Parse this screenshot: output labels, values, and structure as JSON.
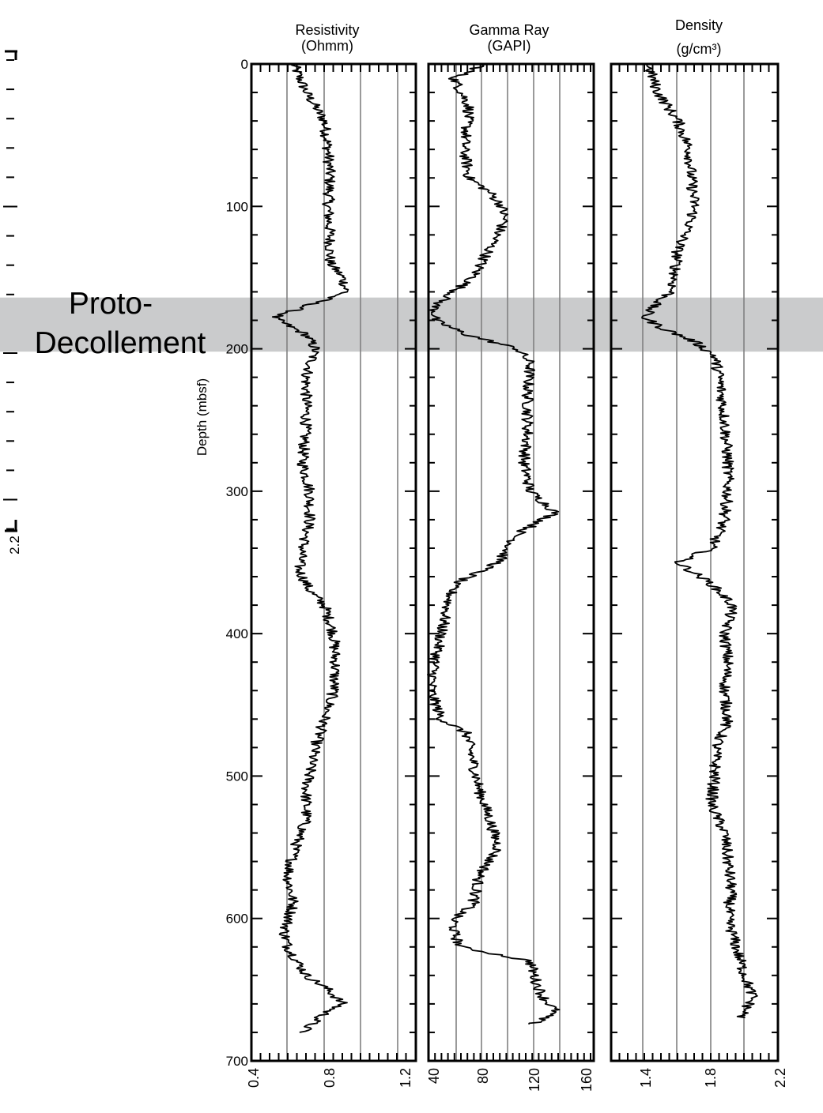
{
  "chart_data": [
    {
      "type": "line",
      "title": "Resistivity",
      "units": "(Ohmm)",
      "xlim": [
        0.4,
        1.3
      ],
      "x_ticks": [
        "0.4",
        "0.8",
        "1.2"
      ],
      "ylim": [
        0,
        700
      ],
      "series": [
        {
          "depth": [
            0,
            20,
            40,
            60,
            80,
            100,
            120,
            140,
            150,
            160,
            170,
            178,
            185,
            190,
            200,
            220,
            250,
            280,
            300,
            320,
            340,
            355,
            370,
            380,
            400,
            420,
            440,
            460,
            475,
            490,
            510,
            530,
            550,
            570,
            590,
            610,
            620,
            640,
            650,
            660,
            665,
            675,
            680
          ],
          "value": [
            0.63,
            0.7,
            0.8,
            0.82,
            0.83,
            0.82,
            0.83,
            0.83,
            0.9,
            0.92,
            0.7,
            0.52,
            0.62,
            0.7,
            0.75,
            0.7,
            0.7,
            0.68,
            0.72,
            0.72,
            0.68,
            0.66,
            0.72,
            0.8,
            0.85,
            0.86,
            0.85,
            0.8,
            0.76,
            0.73,
            0.7,
            0.7,
            0.64,
            0.6,
            0.63,
            0.58,
            0.6,
            0.7,
            0.82,
            0.9,
            0.82,
            0.72,
            0.68
          ]
        }
      ]
    },
    {
      "type": "line",
      "title": "Gamma Ray",
      "units": "(GAPI)",
      "xlim": [
        40,
        170
      ],
      "x_ticks": [
        "40",
        "80",
        "120",
        "160"
      ],
      "ylim": [
        0,
        700
      ],
      "series": [
        {
          "depth": [
            0,
            10,
            30,
            60,
            80,
            90,
            100,
            110,
            130,
            150,
            160,
            170,
            180,
            190,
            200,
            210,
            230,
            260,
            280,
            300,
            315,
            330,
            350,
            365,
            380,
            400,
            420,
            440,
            460,
            470,
            490,
            510,
            530,
            550,
            570,
            590,
            600,
            610,
            620,
            630,
            645,
            655,
            665,
            675
          ],
          "value": [
            85,
            60,
            72,
            68,
            72,
            88,
            98,
            100,
            88,
            75,
            60,
            45,
            45,
            70,
            110,
            120,
            118,
            118,
            115,
            120,
            140,
            110,
            95,
            60,
            55,
            50,
            45,
            42,
            50,
            70,
            75,
            80,
            88,
            95,
            80,
            75,
            60,
            60,
            65,
            120,
            125,
            130,
            140,
            120
          ]
        }
      ]
    },
    {
      "type": "line",
      "title": "Density",
      "units": "(g/cm³)",
      "xlim": [
        1.2,
        2.2
      ],
      "x_ticks": [
        "1.4",
        "1.8",
        "2.2"
      ],
      "ylim": [
        0,
        700
      ],
      "series": [
        {
          "depth": [
            0,
            20,
            40,
            60,
            80,
            100,
            110,
            130,
            150,
            160,
            170,
            178,
            185,
            195,
            205,
            220,
            250,
            280,
            300,
            320,
            340,
            350,
            365,
            380,
            400,
            420,
            440,
            460,
            480,
            500,
            520,
            540,
            560,
            580,
            600,
            620,
            640,
            655,
            670
          ],
          "value": [
            1.42,
            1.48,
            1.6,
            1.67,
            1.68,
            1.7,
            1.68,
            1.6,
            1.58,
            1.56,
            1.45,
            1.4,
            1.5,
            1.7,
            1.82,
            1.85,
            1.88,
            1.9,
            1.9,
            1.88,
            1.8,
            1.6,
            1.8,
            1.93,
            1.88,
            1.9,
            1.88,
            1.9,
            1.83,
            1.82,
            1.8,
            1.88,
            1.9,
            1.92,
            1.9,
            1.95,
            2.0,
            2.05,
            1.98
          ]
        }
      ]
    }
  ],
  "depth_axis": {
    "label": "Depth (mbsf)",
    "ticks": [
      "0",
      "100",
      "200",
      "300",
      "400",
      "500",
      "600",
      "700"
    ]
  },
  "annotation": {
    "line1": "Proto-",
    "line2": "Decollement",
    "depth_range": [
      164,
      202
    ]
  },
  "edge_fragment": {
    "tick_label": "2.2"
  },
  "colors": {
    "band": "#cacbcc",
    "trace": "#000000",
    "gridline": "#808080"
  }
}
